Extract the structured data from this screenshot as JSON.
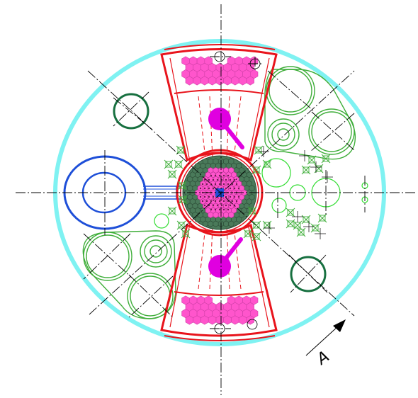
{
  "drawing": {
    "view_marker": "A",
    "colors": {
      "outer_ring": "#7ff2f2",
      "chamber": "#e8141c",
      "fuel": "#ff55cc",
      "control_rod": "#e000e0",
      "nozzle": "#1e4fd8",
      "aux_light": "#3fae3a",
      "aux_dark": "#177040",
      "core_fill": "#4a7a5a",
      "centerline": "#000000"
    },
    "icons": [
      "arrow-icon"
    ]
  }
}
